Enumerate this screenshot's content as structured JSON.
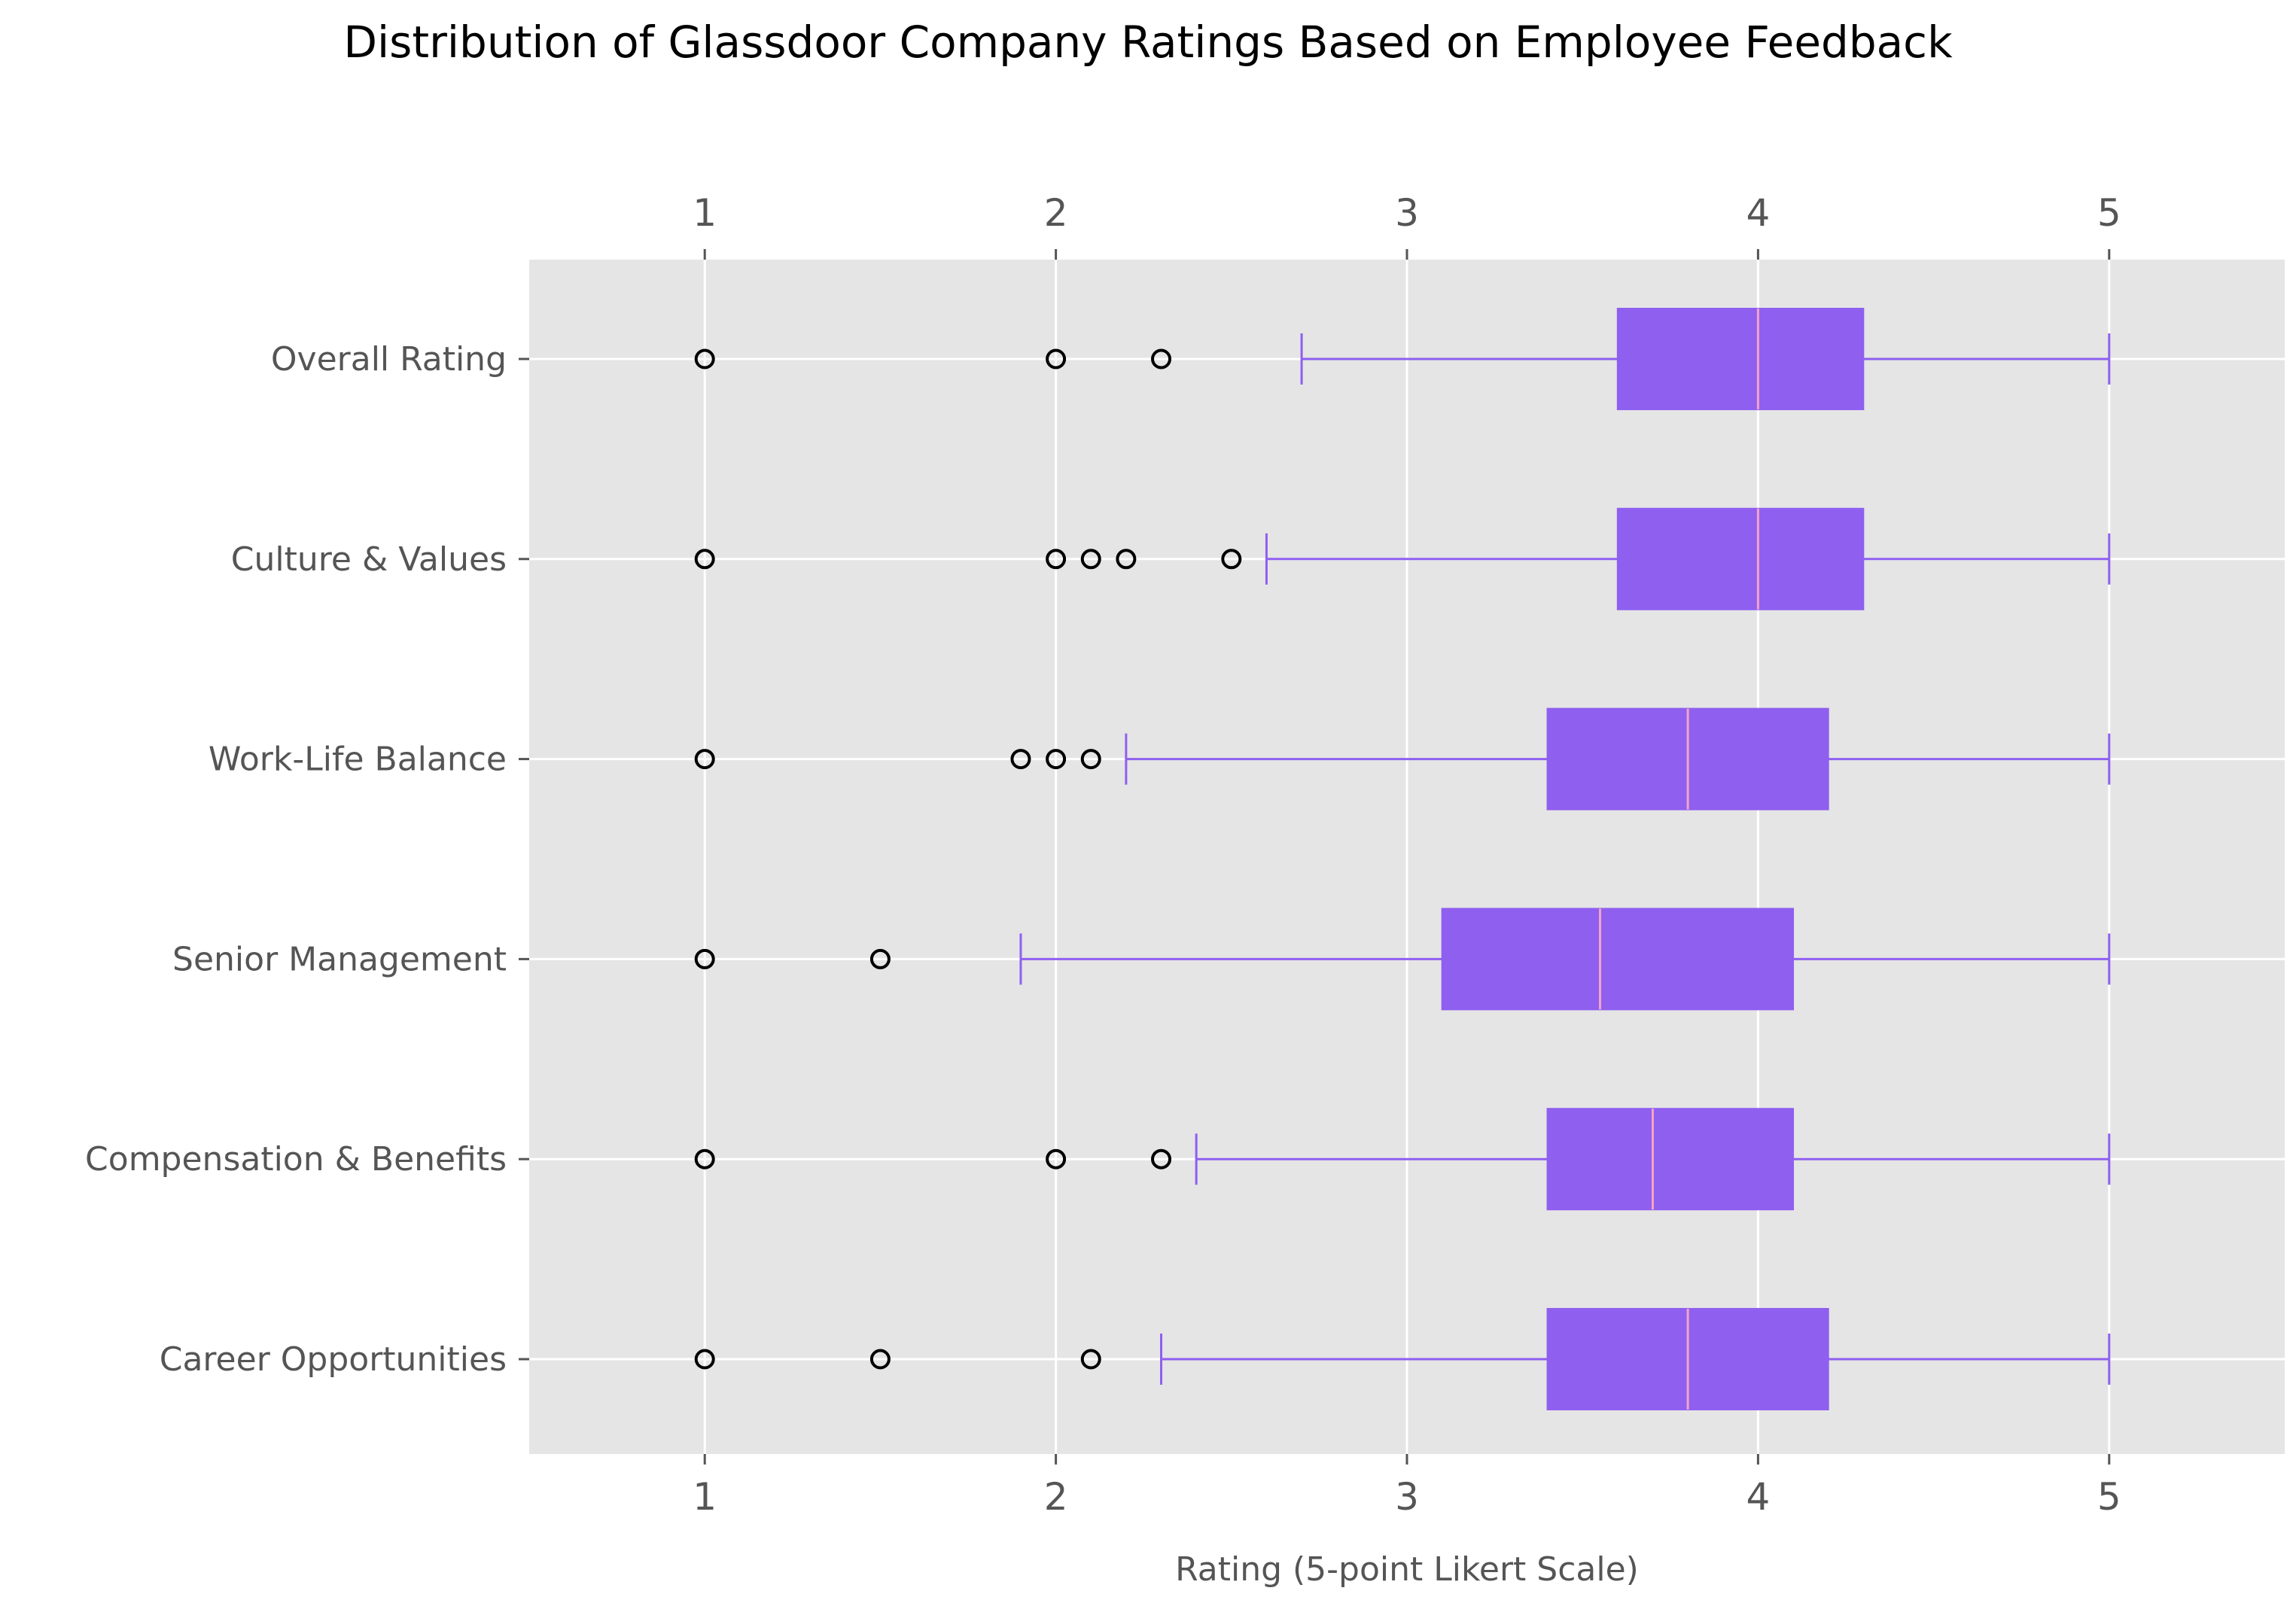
{
  "chart_data": {
    "type": "boxplot",
    "orientation": "horizontal",
    "title": "Distribution of Glassdoor Company Ratings Based on Employee Feedback",
    "xlabel": "Rating (5-point Likert Scale)",
    "ylabel": "",
    "xlim": [
      0.5,
      5.5
    ],
    "xticks": [
      1,
      2,
      3,
      4,
      5
    ],
    "xtick_labels": [
      "1",
      "2",
      "3",
      "4",
      "5"
    ],
    "grid": true,
    "box_color": "#8f5ff0",
    "median_color": "#f4a3c4",
    "background_color": "#e5e5e5",
    "categories": [
      "Overall Rating",
      "Culture & Values",
      "Work-Life Balance",
      "Senior Management",
      "Compensation & Benefits",
      "Career Opportunities"
    ],
    "series": [
      {
        "category": "Overall Rating",
        "whisker_low": 2.7,
        "q1": 3.6,
        "median": 4.0,
        "q3": 4.3,
        "whisker_high": 5.0,
        "outliers": [
          1.0,
          2.0,
          2.3
        ]
      },
      {
        "category": "Culture & Values",
        "whisker_low": 2.6,
        "q1": 3.6,
        "median": 4.0,
        "q3": 4.3,
        "whisker_high": 5.0,
        "outliers": [
          1.0,
          2.0,
          2.1,
          2.2,
          2.5
        ]
      },
      {
        "category": "Work-Life Balance",
        "whisker_low": 2.2,
        "q1": 3.4,
        "median": 3.8,
        "q3": 4.2,
        "whisker_high": 5.0,
        "outliers": [
          1.0,
          1.9,
          2.0,
          2.1
        ]
      },
      {
        "category": "Senior Management",
        "whisker_low": 1.9,
        "q1": 3.1,
        "median": 3.55,
        "q3": 4.1,
        "whisker_high": 5.0,
        "outliers": [
          1.0,
          1.5
        ]
      },
      {
        "category": "Compensation & Benefits",
        "whisker_low": 2.4,
        "q1": 3.4,
        "median": 3.7,
        "q3": 4.1,
        "whisker_high": 5.0,
        "outliers": [
          1.0,
          2.0,
          2.3
        ]
      },
      {
        "category": "Career Opportunities",
        "whisker_low": 2.3,
        "q1": 3.4,
        "median": 3.8,
        "q3": 4.2,
        "whisker_high": 5.0,
        "outliers": [
          1.0,
          1.5,
          2.1
        ]
      }
    ]
  }
}
